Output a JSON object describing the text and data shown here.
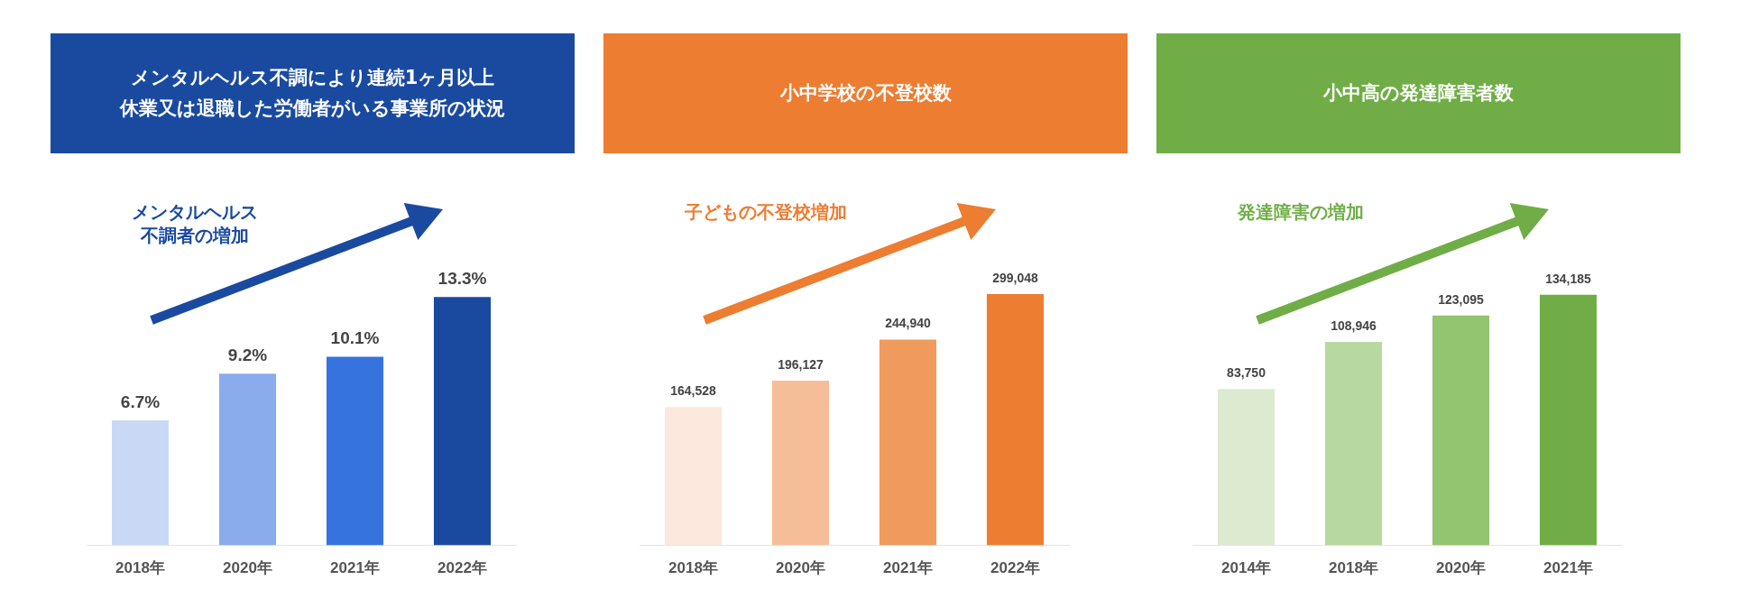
{
  "chart_data": [
    {
      "type": "bar",
      "title": "メンタルヘルス不調により連続1ヶ月以上休業又は退職した労働者がいる事業所の状況",
      "categories": [
        "2018年",
        "2020年",
        "2021年",
        "2022年"
      ],
      "values": [
        6.7,
        9.2,
        10.1,
        13.3
      ],
      "value_labels": [
        "6.7%",
        "9.2%",
        "10.1%",
        "13.3%"
      ],
      "colors": [
        "#c9d9f5",
        "#8aacec",
        "#3673de",
        "#1a4aa0"
      ],
      "annotations": [
        "メンタルヘルス不調者の増加"
      ],
      "grid": false,
      "legend": false,
      "tick_labels": "x"
    },
    {
      "type": "bar",
      "title": "小中学校の不登校数",
      "categories": [
        "2018年",
        "2020年",
        "2021年",
        "2022年"
      ],
      "values": [
        164528,
        196127,
        244940,
        299048
      ],
      "value_labels": [
        "164,528",
        "196,127",
        "244,940",
        "299,048"
      ],
      "colors": [
        "#fce8dc",
        "#f6be98",
        "#f09a5e",
        "#ed7d31"
      ],
      "annotations": [
        "子どもの不登校増加"
      ],
      "grid": false,
      "legend": false,
      "tick_labels": "x"
    },
    {
      "type": "bar",
      "title": "小中高の発達障害者数",
      "categories": [
        "2014年",
        "2018年",
        "2020年",
        "2021年"
      ],
      "values": [
        83750,
        108946,
        123095,
        134185
      ],
      "value_labels": [
        "83,750",
        "108,946",
        "123,095",
        "134,185"
      ],
      "colors": [
        "#dcebd0",
        "#b7d9a0",
        "#93c46f",
        "#70ad47"
      ],
      "annotations": [
        "発達障害の増加"
      ],
      "grid": false,
      "legend": false,
      "tick_labels": "x"
    }
  ]
}
